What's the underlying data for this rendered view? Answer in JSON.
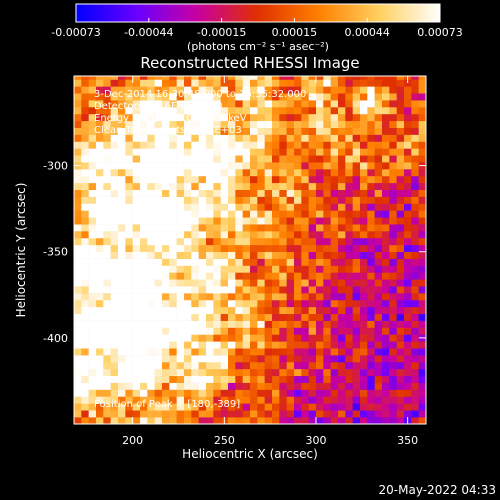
{
  "chart_data": {
    "type": "heatmap",
    "title": "Reconstructed RHESSI Image",
    "xlabel": "Heliocentric X (arcsec)",
    "ylabel": "Heliocentric Y (arcsec)",
    "xlim": [
      168,
      360
    ],
    "ylim": [
      -450,
      -248
    ],
    "x_ticks": [
      200,
      250,
      300,
      350
    ],
    "y_ticks": [
      -300,
      -350,
      -400
    ],
    "colorbar": {
      "range": [
        -0.00073,
        0.00073
      ],
      "ticks": [
        "-0.00073",
        "-0.00044",
        "-0.00015",
        "0.00015",
        "0.00044",
        "0.00073"
      ],
      "label": "(photons cm⁻² s⁻¹ asec⁻²)",
      "colors": [
        "#0000ff",
        "#6a00ff",
        "#c800a0",
        "#e03000",
        "#ff8000",
        "#ffd060",
        "#ffffff"
      ]
    },
    "annotations": [
      "3-Dec-2014 16:30:48.000 to 16:35:32.000",
      "Detectors: 3F 6F 9F, Att 0",
      "Energy Range: 12.0 - 25.0 keV",
      "Clean     Total counts: 3.26E+03"
    ],
    "peak_label": "Position of Peak = [180,-389]",
    "peak": [
      180,
      -389
    ],
    "bright_regions": [
      {
        "x": 178,
        "y": -392,
        "intensity": 1.0
      },
      {
        "x": 215,
        "y": -300,
        "intensity": 0.8
      },
      {
        "x": 240,
        "y": -265,
        "intensity": 0.75
      },
      {
        "x": 330,
        "y": -265,
        "intensity": 0.7
      },
      {
        "x": 185,
        "y": -330,
        "intensity": 0.7
      },
      {
        "x": 230,
        "y": -390,
        "intensity": 0.6
      },
      {
        "x": 205,
        "y": -420,
        "intensity": 0.55
      }
    ]
  },
  "footer": {
    "timestamp": "20-May-2022 04:33"
  }
}
